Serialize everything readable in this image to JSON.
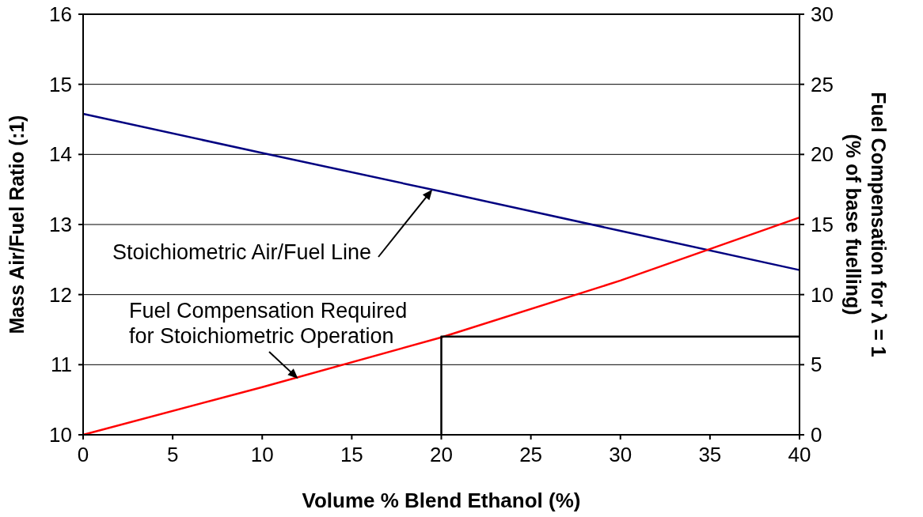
{
  "chart_data": {
    "type": "line",
    "xlabel": "Volume % Blend Ethanol (%)",
    "ylabel": "Mass Air/Fuel Ratio (:1)",
    "y2label": "Fuel Compensation for λ = 1\n(% of base fuelling)",
    "x": [
      0,
      10,
      20,
      30,
      40
    ],
    "series": [
      {
        "color": "#000080",
        "values": [
          14.58,
          14.02,
          13.47,
          12.91,
          12.35
        ]
      },
      {
        "color": "#ff0000",
        "axis": "y2",
        "values": [
          0,
          3.4,
          6.95,
          11,
          15.5
        ]
      },
      {
        "type": "step",
        "color": "#000000",
        "axis": "y2",
        "x": [
          20,
          40
        ],
        "values": [
          0,
          7
        ]
      }
    ],
    "xlim": [
      0,
      40
    ],
    "xticks": [
      0,
      5,
      10,
      15,
      20,
      25,
      30,
      35,
      40
    ],
    "ylim": [
      10,
      16
    ],
    "yticks": [
      10,
      11,
      12,
      13,
      14,
      15,
      16
    ],
    "y2lim": [
      0,
      30
    ],
    "y2ticks": [
      0,
      5,
      10,
      15,
      20,
      25,
      30
    ],
    "grid": "y",
    "marker": "none",
    "line_style": "solid",
    "annotations": [
      {
        "text": "Stoichiometric Air/Fuel Line",
        "x": 19.5,
        "y": 13.5
      },
      {
        "text": "Fuel Compensation Required\nfor Stoichiometric Operation",
        "x": 12,
        "y": 10.8
      }
    ]
  }
}
